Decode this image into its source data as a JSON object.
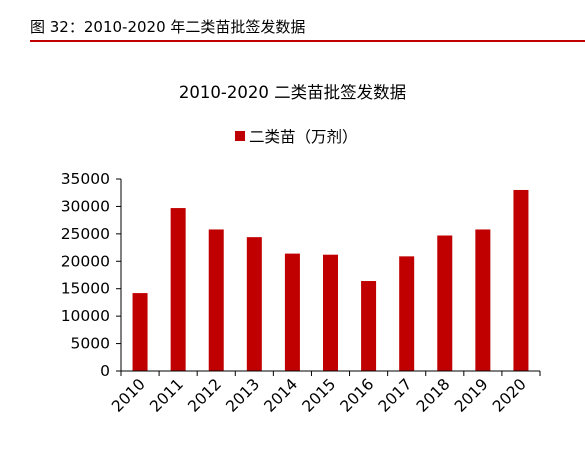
{
  "caption": {
    "text": "图 32：2010-2020 年二类苗批签发数据"
  },
  "chart_data": {
    "type": "bar",
    "title": "2010-2020 二类苗批签发数据",
    "categories": [
      "2010",
      "2011",
      "2012",
      "2013",
      "2014",
      "2015",
      "2016",
      "2017",
      "2018",
      "2019",
      "2020"
    ],
    "series": [
      {
        "name": "二类苗（万剂）",
        "values": [
          14200,
          29700,
          25800,
          24400,
          21400,
          21200,
          16400,
          20900,
          24700,
          25800,
          33000
        ],
        "color": "#c00000"
      }
    ],
    "ylim": [
      0,
      35000
    ],
    "yticks": [
      "0",
      "5000",
      "10000",
      "15000",
      "20000",
      "25000",
      "30000",
      "35000"
    ],
    "legend_position": "top-center",
    "grid": false
  }
}
